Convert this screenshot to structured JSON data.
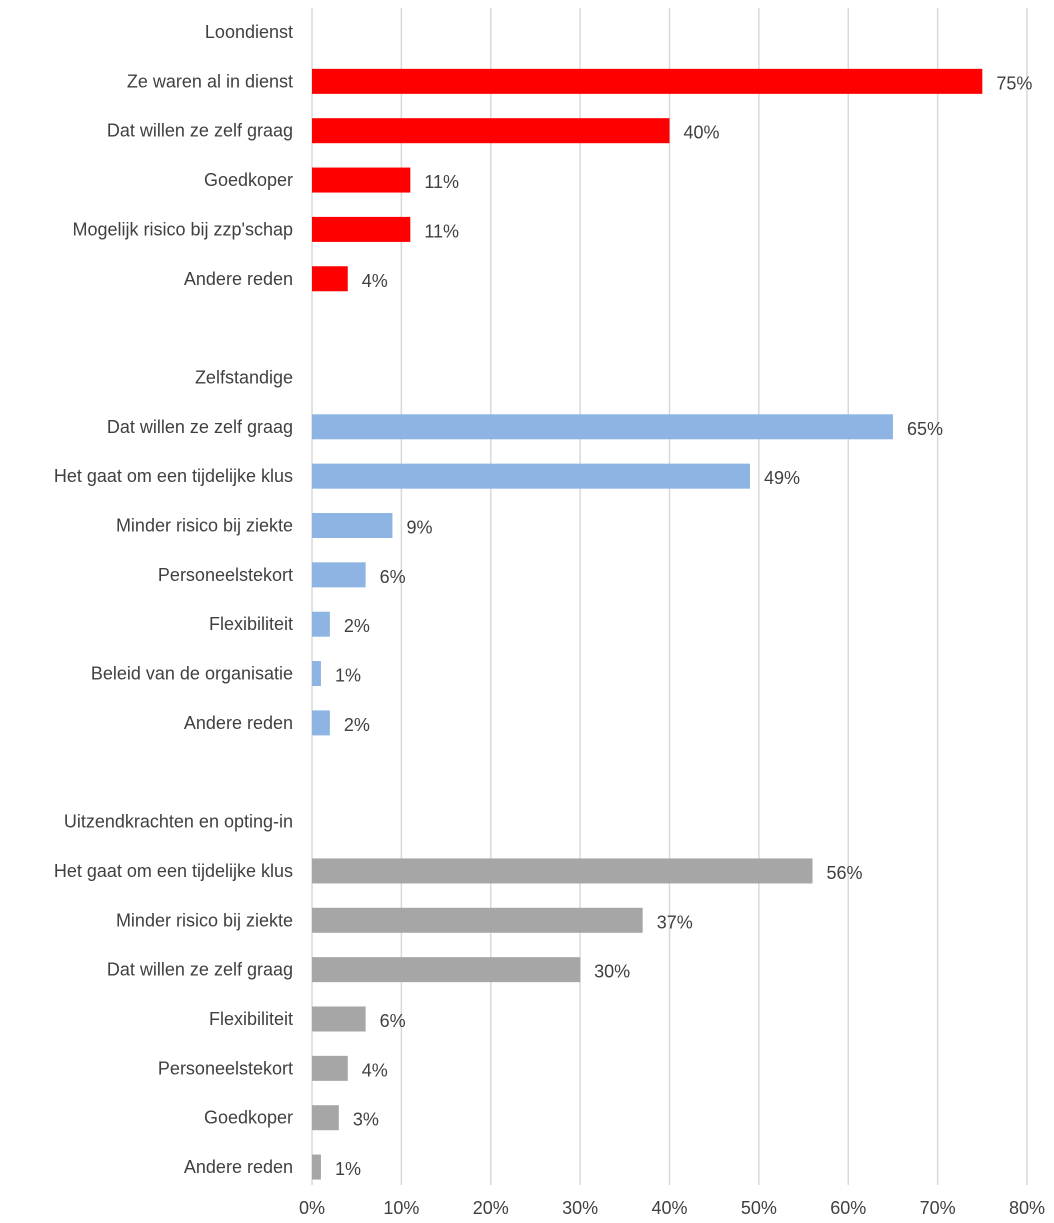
{
  "chart_data": {
    "type": "bar",
    "orientation": "horizontal",
    "title": "",
    "xlabel": "",
    "ylabel": "",
    "xlim": [
      0,
      80
    ],
    "x_ticks": [
      "0%",
      "10%",
      "20%",
      "30%",
      "40%",
      "50%",
      "60%",
      "70%",
      "80%"
    ],
    "grid": "vertical",
    "value_unit": "%",
    "groups": [
      {
        "name": "Loondienst",
        "color": "#ff0000",
        "categories": [
          "Ze waren al in dienst",
          "Dat willen ze zelf graag",
          "Goedkoper",
          "Mogelijk risico bij zzp'schap",
          "Andere reden"
        ],
        "values": [
          75,
          40,
          11,
          11,
          4
        ],
        "labels": [
          "75%",
          "40%",
          "11%",
          "11%",
          "4%"
        ]
      },
      {
        "name": "Zelfstandige",
        "color": "#8eb4e3",
        "categories": [
          "Dat willen ze zelf graag",
          "Het gaat om een tijdelijke klus",
          "Minder risico bij ziekte",
          "Personeelstekort",
          "Flexibiliteit",
          "Beleid van de organisatie",
          "Andere reden"
        ],
        "values": [
          65,
          49,
          9,
          6,
          2,
          1,
          2
        ],
        "labels": [
          "65%",
          "49%",
          "9%",
          "6%",
          "2%",
          "1%",
          "2%"
        ]
      },
      {
        "name": "Uitzendkrachten en opting-in",
        "color": "#a6a6a6",
        "categories": [
          "Het gaat om een tijdelijke klus",
          "Minder risico bij ziekte",
          "Dat willen ze zelf graag",
          "Flexibiliteit",
          "Personeelstekort",
          "Goedkoper",
          "Andere reden"
        ],
        "values": [
          56,
          37,
          30,
          6,
          4,
          3,
          1
        ],
        "labels": [
          "56%",
          "37%",
          "30%",
          "6%",
          "4%",
          "3%",
          "1%"
        ]
      }
    ]
  }
}
